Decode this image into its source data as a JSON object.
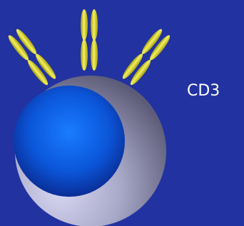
{
  "label": "CD3"
}
